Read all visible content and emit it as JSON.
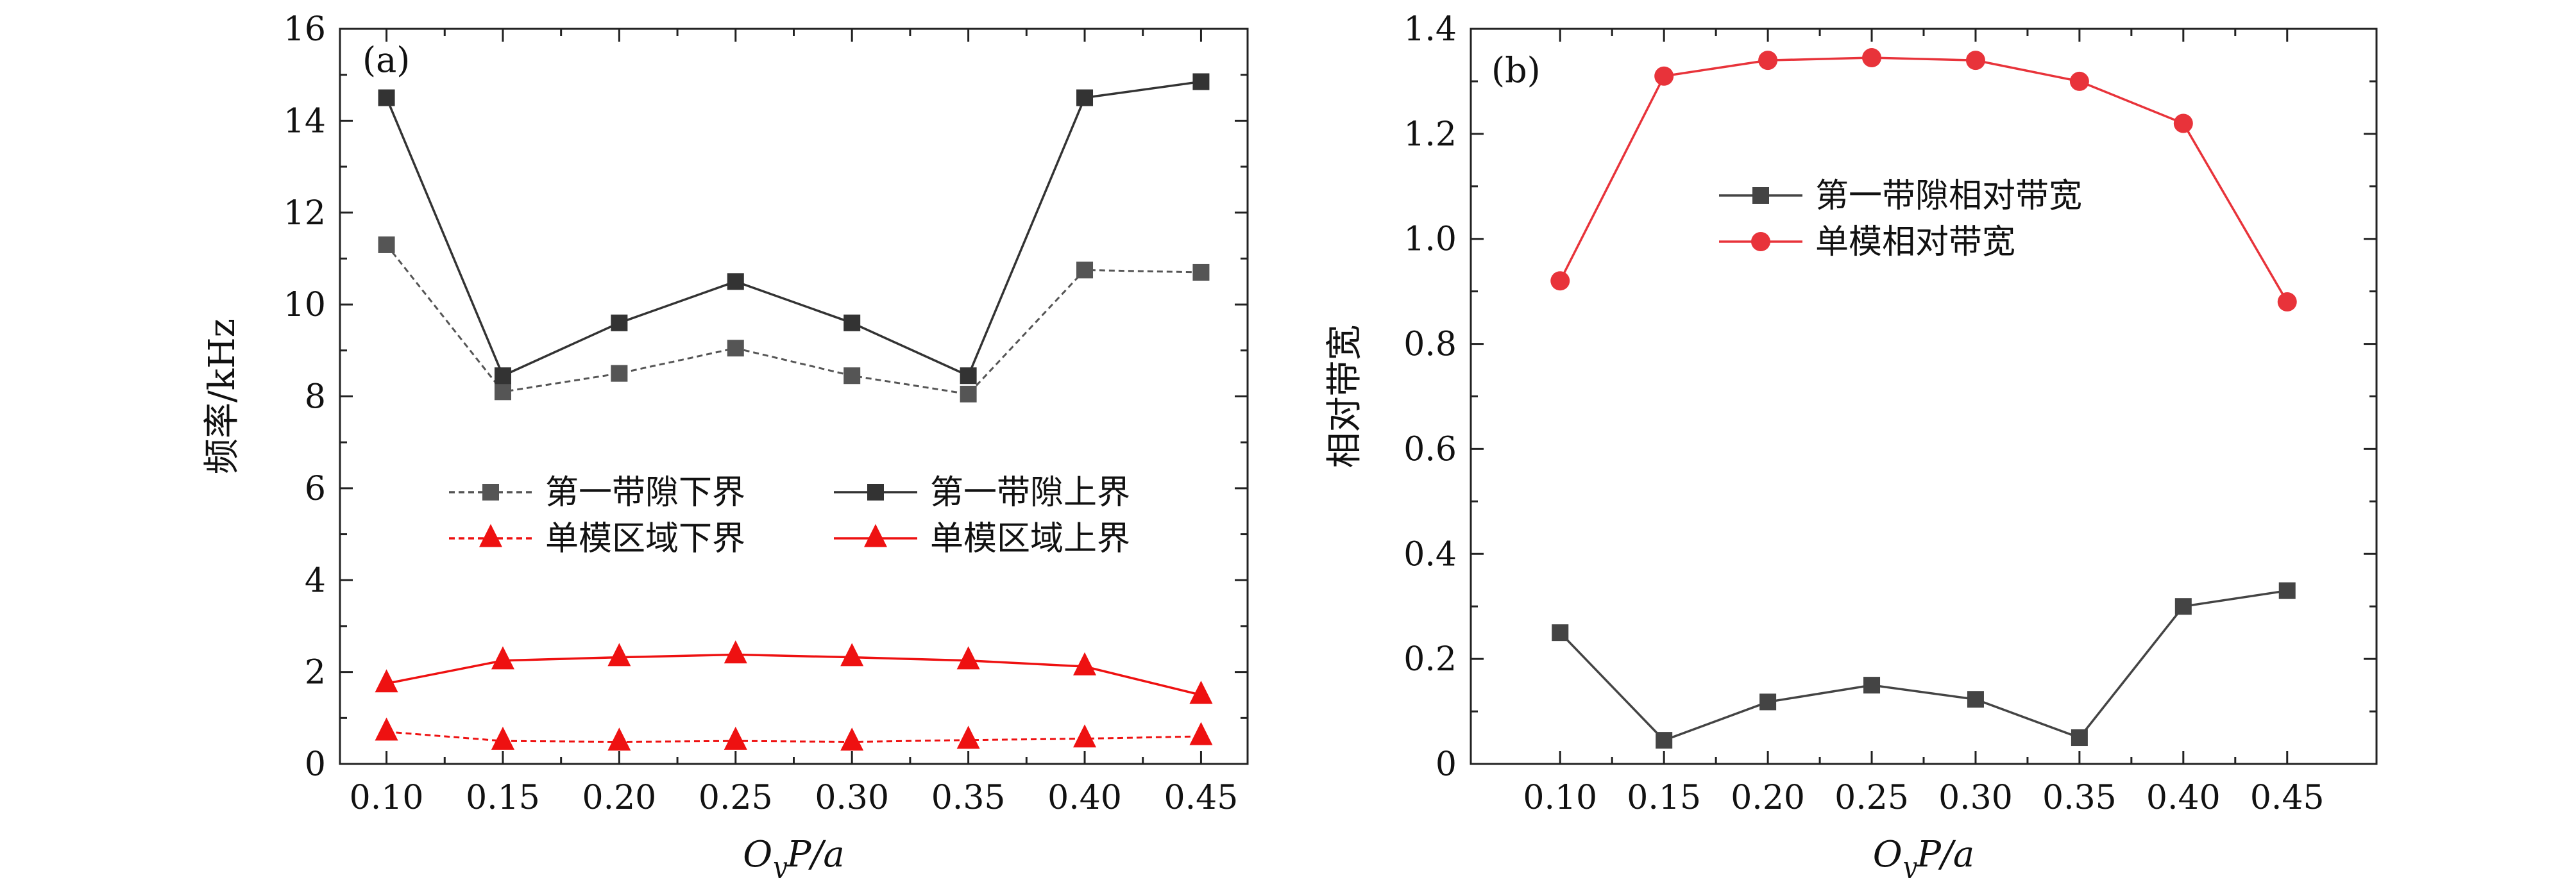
{
  "chart_data": [
    {
      "type": "line",
      "panel_label": "(a)",
      "x": [
        0.1,
        0.15,
        0.2,
        0.25,
        0.3,
        0.35,
        0.4,
        0.45
      ],
      "x_tick_labels": [
        "0.10",
        "0.15",
        "0.20",
        "0.25",
        "0.30",
        "0.35",
        "0.40",
        "0.45"
      ],
      "xlim": [
        0.08,
        0.47
      ],
      "ylim": [
        0,
        16
      ],
      "y_ticks": [
        0,
        2,
        4,
        6,
        8,
        10,
        12,
        14,
        16
      ],
      "y_tick_labels": [
        "0",
        "2",
        "4",
        "6",
        "8",
        "10",
        "12",
        "14",
        "16"
      ],
      "xlabel": "O_yP/a",
      "xlabel_parts": [
        "O",
        "y",
        "P/a"
      ],
      "ylabel": "频率/kHz",
      "legend_columns": 2,
      "series": [
        {
          "name": "第一带隙下界",
          "values": [
            11.3,
            8.1,
            8.5,
            9.05,
            8.45,
            8.05,
            10.75,
            10.7
          ],
          "color": "#555555",
          "marker": "square",
          "linestyle": "dashed"
        },
        {
          "name": "第一带隙上界",
          "values": [
            14.5,
            8.45,
            9.6,
            10.5,
            9.6,
            8.45,
            14.5,
            14.85
          ],
          "color": "#333333",
          "marker": "square",
          "linestyle": "solid"
        },
        {
          "name": "单模区域下界",
          "values": [
            0.7,
            0.5,
            0.48,
            0.5,
            0.48,
            0.52,
            0.55,
            0.6
          ],
          "color": "#ee1111",
          "marker": "triangle",
          "linestyle": "dashed"
        },
        {
          "name": "单模区域上界",
          "values": [
            1.75,
            2.25,
            2.32,
            2.38,
            2.32,
            2.25,
            2.12,
            1.5
          ],
          "color": "#ee1111",
          "marker": "triangle",
          "linestyle": "solid"
        }
      ]
    },
    {
      "type": "line",
      "panel_label": "(b)",
      "x": [
        0.1,
        0.15,
        0.2,
        0.25,
        0.3,
        0.35,
        0.4,
        0.45
      ],
      "x_tick_labels": [
        "0.10",
        "0.15",
        "0.20",
        "0.25",
        "0.30",
        "0.35",
        "0.40",
        "0.45"
      ],
      "xlim": [
        0.057,
        0.493
      ],
      "ylim": [
        0,
        1.4
      ],
      "y_ticks": [
        0,
        0.2,
        0.4,
        0.6,
        0.8,
        1.0,
        1.2,
        1.4
      ],
      "y_tick_labels": [
        "0",
        "0.2",
        "0.4",
        "0.6",
        "0.8",
        "1.0",
        "1.2",
        "1.4"
      ],
      "xlabel": "O_yP/a",
      "xlabel_parts": [
        "O",
        "y",
        "P/a"
      ],
      "ylabel": "相对带宽",
      "legend_columns": 1,
      "series": [
        {
          "name": "第一带隙相对带宽",
          "values": [
            0.25,
            0.045,
            0.118,
            0.15,
            0.123,
            0.05,
            0.3,
            0.33
          ],
          "color": "#444444",
          "marker": "square",
          "linestyle": "solid"
        },
        {
          "name": "单模相对带宽",
          "values": [
            0.92,
            1.31,
            1.34,
            1.345,
            1.34,
            1.3,
            1.22,
            0.88
          ],
          "color": "#e8333a",
          "marker": "circle",
          "linestyle": "solid"
        }
      ]
    }
  ]
}
